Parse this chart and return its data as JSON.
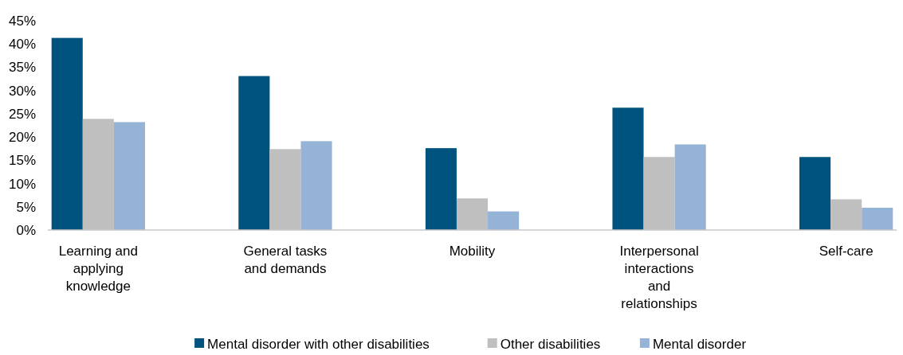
{
  "chart_data": {
    "type": "bar",
    "categories": [
      "Learning and applying knowledge",
      "General tasks and demands",
      "Mobility",
      "Interpersonal interactions and relationships",
      "Self-care"
    ],
    "series": [
      {
        "name": "Mental disorder with other disabilities",
        "color": "#00537f",
        "values": [
          41.3,
          33.1,
          17.6,
          26.3,
          15.7
        ]
      },
      {
        "name": "Other disabilities",
        "color": "#bfbfbf",
        "values": [
          23.9,
          17.4,
          6.8,
          15.7,
          6.6
        ]
      },
      {
        "name": "Mental disorder",
        "color": "#95b3d7",
        "values": [
          23.2,
          19.1,
          4.0,
          18.4,
          4.8
        ]
      }
    ],
    "ylim": [
      0,
      45
    ],
    "yticks": [
      {
        "value": 0,
        "label": "0%"
      },
      {
        "value": 5,
        "label": "5%"
      },
      {
        "value": 10,
        "label": "10%"
      },
      {
        "value": 15,
        "label": "15%"
      },
      {
        "value": 20,
        "label": "20%"
      },
      {
        "value": 25,
        "label": "25%"
      },
      {
        "value": 30,
        "label": "30%"
      },
      {
        "value": 35,
        "label": "35%"
      },
      {
        "value": 40,
        "label": "40%"
      },
      {
        "value": 45,
        "label": "45%"
      }
    ],
    "grid": false,
    "legend": "bottom"
  }
}
